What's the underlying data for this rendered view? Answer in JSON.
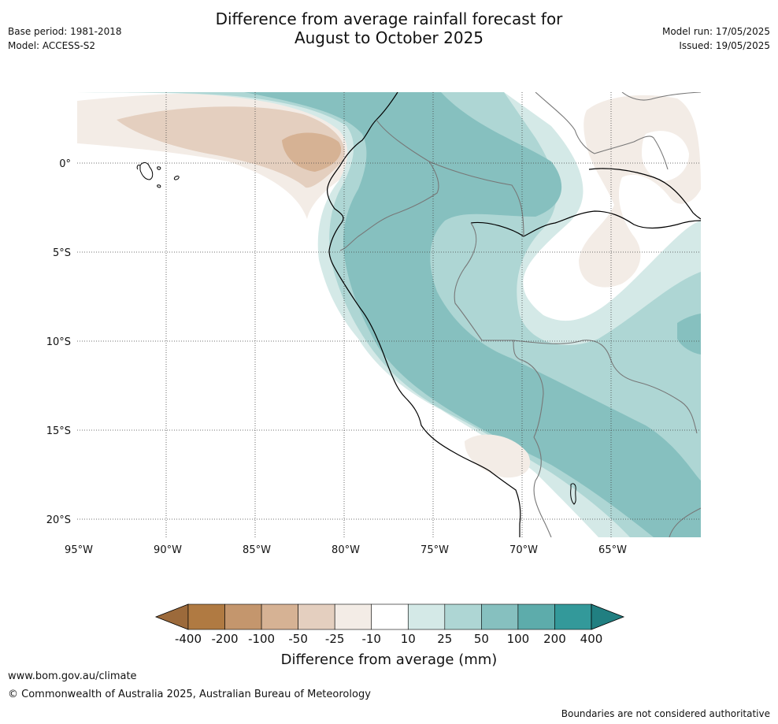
{
  "header": {
    "title_line1": "Difference from average rainfall forecast for",
    "title_line2": "August to October 2025",
    "base_period": "Base period: 1981-2018",
    "model": "Model: ACCESS-S2",
    "model_run": "Model run: 17/05/2025",
    "issued": "Issued: 19/05/2025"
  },
  "map": {
    "lon_labels": [
      "95°W",
      "90°W",
      "85°W",
      "80°W",
      "75°W",
      "70°W",
      "65°W"
    ],
    "lat_labels": [
      "0°",
      "5°S",
      "10°S",
      "15°S",
      "20°S"
    ],
    "region": "Western South America"
  },
  "colorbar": {
    "title": "Difference from average (mm)",
    "labels": [
      "-400",
      "-200",
      "-100",
      "-50",
      "-25",
      "-10",
      "10",
      "25",
      "50",
      "100",
      "200",
      "400"
    ],
    "colors": [
      "#9c6a3b",
      "#b07a42",
      "#c4966d",
      "#d6b294",
      "#e4cfbf",
      "#f3ece6",
      "#ffffff",
      "#d4e9e7",
      "#aed6d4",
      "#86c0bf",
      "#5dacab",
      "#33999a",
      "#217f81"
    ]
  },
  "footer": {
    "url": "www.bom.gov.au/climate",
    "copyright": "© Commonwealth of Australia 2025, Australian Bureau of Meteorology",
    "note": "Boundaries are not considered authoritative"
  }
}
